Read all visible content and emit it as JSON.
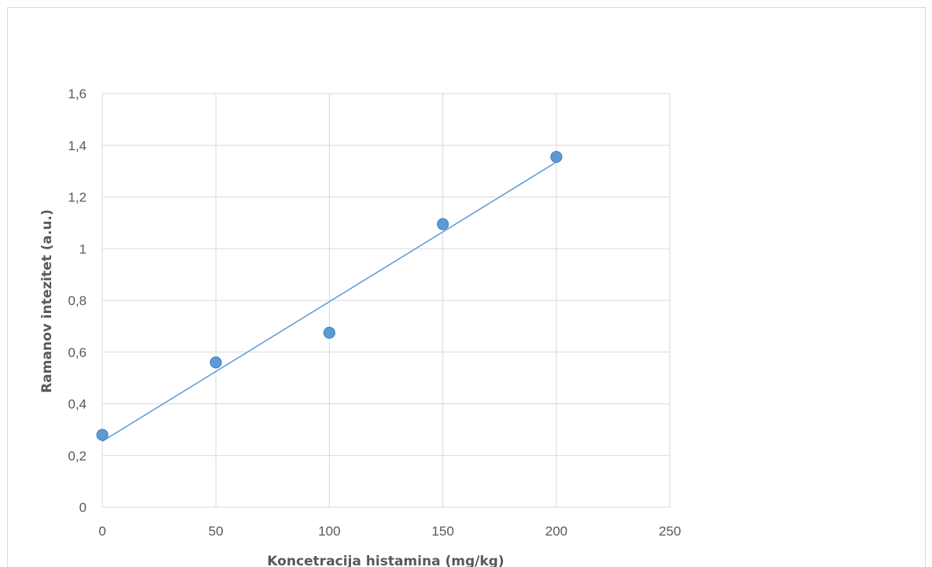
{
  "chart_data": {
    "type": "scatter",
    "title": "",
    "xlabel": "Koncetracija histamina (mg/kg)",
    "ylabel": "Ramanov intezitet (a.u.)",
    "xlim": [
      0,
      250
    ],
    "ylim": [
      0,
      1.6
    ],
    "xticks": [
      0,
      50,
      100,
      150,
      200,
      250
    ],
    "yticks": [
      0,
      0.2,
      0.4,
      0.6,
      0.8,
      1.0,
      1.2,
      1.4,
      1.6
    ],
    "xtick_labels": [
      "0",
      "50",
      "100",
      "150",
      "200",
      "250"
    ],
    "ytick_labels": [
      "0",
      "0,2",
      "0,4",
      "0,6",
      "0,8",
      "1",
      "1,2",
      "1,4",
      "1,6"
    ],
    "grid": true,
    "legend": "none",
    "series": [
      {
        "x": [
          0,
          50,
          100,
          150,
          200
        ],
        "y": [
          0.28,
          0.56,
          0.675,
          1.095,
          1.355
        ],
        "color": "#5b9bd5"
      }
    ],
    "trendline": {
      "type": "linear",
      "x": [
        0,
        200
      ],
      "y": [
        0.255,
        1.335
      ],
      "color": "#5b9bd5"
    }
  }
}
